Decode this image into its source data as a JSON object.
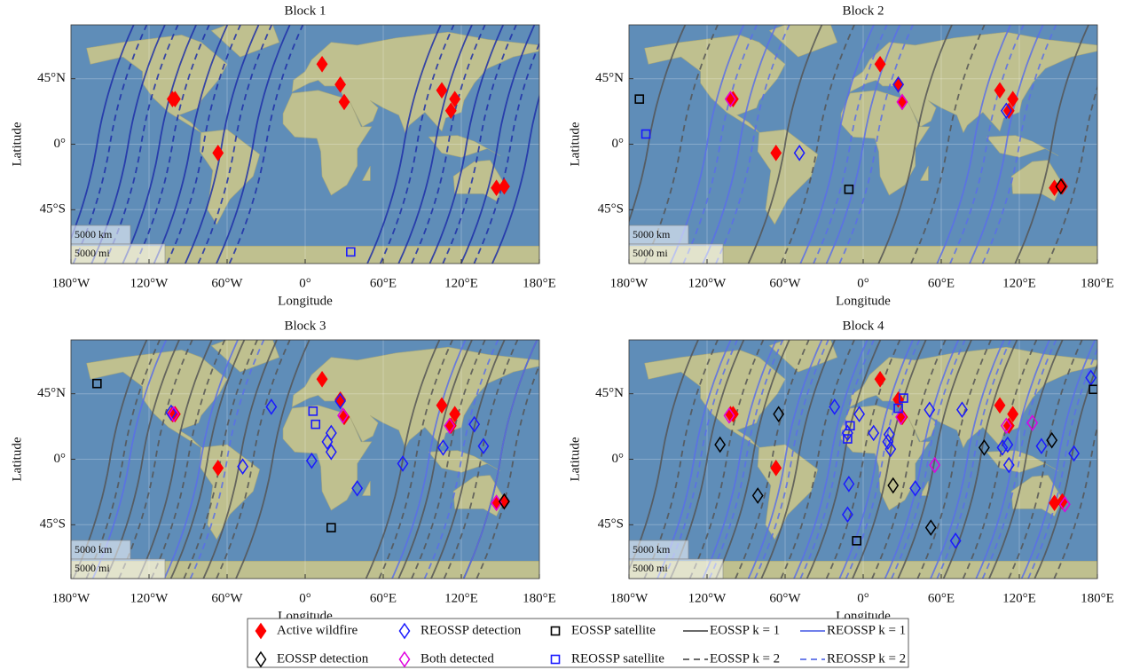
{
  "chart_data": [
    {
      "type": "map",
      "title": "Block 1",
      "x_label": "Longitude",
      "y_label": "Latitude",
      "xlim": [
        -180,
        180
      ],
      "ylim": [
        -82,
        82
      ],
      "xticks": [
        {
          "value": -180,
          "label": "180°W"
        },
        {
          "value": -120,
          "label": "120°W"
        },
        {
          "value": -60,
          "label": "60°W"
        },
        {
          "value": 0,
          "label": "0°"
        },
        {
          "value": 60,
          "label": "60°E"
        },
        {
          "value": 120,
          "label": "120°E"
        },
        {
          "value": 180,
          "label": "180°E"
        }
      ],
      "yticks": [
        {
          "value": 45,
          "label": "45°N"
        },
        {
          "value": 0,
          "label": "0°"
        },
        {
          "value": -45,
          "label": "45°S"
        }
      ],
      "scale_labels": [
        "5000 km",
        "5000 mi"
      ],
      "tracks": [
        {
          "color": "#1f2fa8",
          "dashed": false,
          "x": [
            -160,
            -136,
            -112,
            -88,
            -64,
            -40,
            76,
            100,
            124,
            148,
            172
          ]
        },
        {
          "color": "#1f2fa8",
          "dashed": true,
          "x": [
            -150,
            -126,
            -102,
            -78,
            -54,
            -30,
            86,
            110,
            134,
            158
          ]
        }
      ],
      "series": [
        {
          "marker": "diamond-filled",
          "color": "#ff0000",
          "x": [
            -102,
            -100,
            -67,
            13,
            27,
            30,
            105,
            112,
            115,
            147,
            153
          ],
          "y": [
            31,
            31,
            -6,
            55,
            41,
            29,
            37,
            23,
            31,
            -30,
            -29
          ]
        },
        {
          "marker": "square",
          "color": "#1a1aff",
          "x": [
            35
          ],
          "y": [
            -74
          ]
        }
      ]
    },
    {
      "type": "map",
      "title": "Block 2",
      "x_label": "Longitude",
      "y_label": "Latitude",
      "xlim": [
        -180,
        180
      ],
      "ylim": [
        -82,
        82
      ],
      "xticks": [
        {
          "value": -180,
          "label": "180°W"
        },
        {
          "value": -120,
          "label": "120°W"
        },
        {
          "value": -60,
          "label": "60°W"
        },
        {
          "value": 0,
          "label": "0°"
        },
        {
          "value": 60,
          "label": "60°E"
        },
        {
          "value": 120,
          "label": "120°E"
        },
        {
          "value": 180,
          "label": "180°E"
        }
      ],
      "yticks": [
        {
          "value": 45,
          "label": "45°N"
        },
        {
          "value": 0,
          "label": "0°"
        },
        {
          "value": -45,
          "label": "45°S"
        }
      ],
      "scale_labels": [
        "5000 km",
        "5000 mi"
      ],
      "tracks": [
        {
          "color": "#555555",
          "dashed": false,
          "x": [
            -165,
            -60,
            40,
            145
          ]
        },
        {
          "color": "#555555",
          "dashed": true,
          "x": [
            -140,
            -35,
            65,
            170
          ]
        },
        {
          "color": "#5b6ee8",
          "dashed": false,
          "x": [
            -120,
            -95,
            -20,
            0,
            85,
            110
          ]
        },
        {
          "color": "#5b6ee8",
          "dashed": true,
          "x": [
            -110,
            -85,
            -10,
            10,
            95,
            120
          ]
        }
      ],
      "series": [
        {
          "marker": "diamond-filled",
          "color": "#ff0000",
          "x": [
            -102,
            -100,
            -67,
            13,
            27,
            30,
            105,
            112,
            115,
            147,
            153
          ],
          "y": [
            31,
            31,
            -6,
            55,
            41,
            29,
            37,
            23,
            31,
            -30,
            -29
          ]
        },
        {
          "marker": "diamond",
          "color": "#1a1aff",
          "x": [
            27,
            -49,
            110
          ],
          "y": [
            41,
            -6,
            23
          ]
        },
        {
          "marker": "diamond",
          "color": "#e000e0",
          "x": [
            -102,
            30
          ],
          "y": [
            31,
            29
          ]
        },
        {
          "marker": "diamond",
          "color": "#000000",
          "x": [
            152
          ],
          "y": [
            -29
          ]
        },
        {
          "marker": "square",
          "color": "#000000",
          "x": [
            -172,
            -11
          ],
          "y": [
            31,
            -31
          ]
        },
        {
          "marker": "square",
          "color": "#1a1aff",
          "x": [
            -167
          ],
          "y": [
            7
          ]
        }
      ]
    },
    {
      "type": "map",
      "title": "Block 3",
      "x_label": "Longitude",
      "y_label": "Latitude",
      "xlim": [
        -180,
        180
      ],
      "ylim": [
        -82,
        82
      ],
      "xticks": [
        {
          "value": -180,
          "label": "180°W"
        },
        {
          "value": -120,
          "label": "120°W"
        },
        {
          "value": -60,
          "label": "60°W"
        },
        {
          "value": 0,
          "label": "0°"
        },
        {
          "value": 60,
          "label": "60°E"
        },
        {
          "value": 120,
          "label": "120°E"
        },
        {
          "value": 180,
          "label": "180°E"
        }
      ],
      "yticks": [
        {
          "value": 45,
          "label": "45°N"
        },
        {
          "value": 0,
          "label": "0°"
        },
        {
          "value": -45,
          "label": "45°S"
        }
      ],
      "scale_labels": [
        "5000 km",
        "5000 mi"
      ],
      "tracks": [
        {
          "color": "#555555",
          "dashed": false,
          "x": [
            -150,
            -125,
            -100,
            -75,
            -50,
            -25,
            75,
            100,
            125,
            150
          ]
        },
        {
          "color": "#555555",
          "dashed": true,
          "x": [
            -140,
            -115,
            -90,
            -65,
            -40,
            85,
            110,
            135,
            160
          ]
        },
        {
          "color": "#5b6ee8",
          "dashed": false,
          "x": [
            -135,
            -80,
            95,
            150
          ]
        },
        {
          "color": "#5b6ee8",
          "dashed": true,
          "x": [
            -60,
            120
          ]
        }
      ],
      "series": [
        {
          "marker": "diamond-filled",
          "color": "#ff0000",
          "x": [
            -102,
            -100,
            -67,
            13,
            27,
            30,
            105,
            112,
            115,
            147,
            153
          ],
          "y": [
            31,
            31,
            -6,
            55,
            41,
            29,
            37,
            23,
            31,
            -30,
            -29
          ]
        },
        {
          "marker": "diamond",
          "color": "#1a1aff",
          "x": [
            -26,
            27,
            20,
            17,
            20,
            5,
            40,
            75,
            130,
            137,
            106,
            -103,
            -48
          ],
          "y": [
            36,
            40,
            18,
            12,
            5,
            -1,
            -20,
            -3,
            24,
            9,
            8,
            32,
            -5
          ]
        },
        {
          "marker": "diamond",
          "color": "#e000e0",
          "x": [
            -101,
            29,
            111,
            147
          ],
          "y": [
            31,
            30,
            23,
            -30
          ]
        },
        {
          "marker": "diamond",
          "color": "#000000",
          "x": [
            153
          ],
          "y": [
            -29
          ]
        },
        {
          "marker": "square",
          "color": "#000000",
          "x": [
            -160,
            20
          ],
          "y": [
            52,
            -47
          ]
        },
        {
          "marker": "square",
          "color": "#1a1aff",
          "x": [
            6,
            8
          ],
          "y": [
            33,
            24
          ]
        }
      ]
    },
    {
      "type": "map",
      "title": "Block 4",
      "x_label": "Longitude",
      "y_label": "Latitude",
      "xlim": [
        -180,
        180
      ],
      "ylim": [
        -82,
        82
      ],
      "xticks": [
        {
          "value": -180,
          "label": "180°W"
        },
        {
          "value": -120,
          "label": "120°W"
        },
        {
          "value": -60,
          "label": "60°W"
        },
        {
          "value": 0,
          "label": "0°"
        },
        {
          "value": 60,
          "label": "60°E"
        },
        {
          "value": 120,
          "label": "120°E"
        },
        {
          "value": 180,
          "label": "180°E"
        }
      ],
      "yticks": [
        {
          "value": 45,
          "label": "45°N"
        },
        {
          "value": 0,
          "label": "0°"
        },
        {
          "value": -45,
          "label": "45°S"
        }
      ],
      "scale_labels": [
        "5000 km",
        "5000 mi"
      ],
      "tracks": [
        {
          "color": "#555555",
          "dashed": false,
          "x": [
            -155,
            -120,
            -85,
            -50,
            -15,
            20,
            55,
            90,
            125,
            160
          ]
        },
        {
          "color": "#555555",
          "dashed": true,
          "x": [
            -140,
            -105,
            -70,
            -35,
            0,
            35,
            70,
            105,
            140,
            175
          ]
        },
        {
          "color": "#5b6ee8",
          "dashed": false,
          "x": [
            -130,
            -95,
            -60,
            -25,
            10,
            45,
            80,
            115,
            150
          ]
        },
        {
          "color": "#5b6ee8",
          "dashed": true,
          "x": [
            -125,
            -90,
            -55,
            -20,
            15,
            50,
            85,
            120,
            155
          ]
        }
      ],
      "series": [
        {
          "marker": "diamond-filled",
          "color": "#ff0000",
          "x": [
            -102,
            -100,
            -67,
            13,
            27,
            30,
            105,
            112,
            115,
            147,
            153
          ],
          "y": [
            31,
            31,
            -6,
            55,
            41,
            29,
            37,
            23,
            31,
            -30,
            -29
          ]
        },
        {
          "marker": "diamond",
          "color": "#1a1aff",
          "x": [
            175,
            76,
            51,
            -22,
            -3,
            8,
            20,
            19,
            21,
            -12,
            -11,
            -12,
            40,
            71,
            112,
            107,
            137,
            162,
            111
          ],
          "y": [
            56,
            34,
            34,
            36,
            31,
            18,
            17,
            12,
            7,
            18,
            -17,
            -38,
            -20,
            -56,
            -4,
            8,
            9,
            4,
            10
          ]
        },
        {
          "marker": "diamond",
          "color": "#e000e0",
          "x": [
            130,
            55,
            -103,
            29,
            110,
            155
          ],
          "y": [
            25,
            -4,
            30,
            29,
            23,
            -31
          ]
        },
        {
          "marker": "diamond",
          "color": "#000000",
          "x": [
            -110,
            -65,
            -81,
            23,
            52,
            93,
            145
          ],
          "y": [
            10,
            31,
            -25,
            -18,
            -47,
            8,
            13
          ]
        },
        {
          "marker": "square",
          "color": "#000000",
          "x": [
            177,
            -5
          ],
          "y": [
            48,
            -56
          ]
        },
        {
          "marker": "square",
          "color": "#1a1aff",
          "x": [
            31,
            27,
            -12,
            -10
          ],
          "y": [
            42,
            35,
            14,
            23
          ]
        }
      ]
    }
  ],
  "legend": [
    {
      "label": "Active wildfire",
      "marker": "diamond-filled",
      "color": "#ff0000"
    },
    {
      "label": "EOSSP detection",
      "marker": "diamond",
      "color": "#000000"
    },
    {
      "label": "REOSSP detection",
      "marker": "diamond",
      "color": "#1a1aff"
    },
    {
      "label": "Both detected",
      "marker": "diamond",
      "color": "#e000e0"
    },
    {
      "label": "EOSSP satellite",
      "marker": "square",
      "color": "#000000"
    },
    {
      "label": "REOSSP satellite",
      "marker": "square",
      "color": "#1a1aff"
    },
    {
      "label": "EOSSP k = 1",
      "marker": "line",
      "color": "#555555",
      "dashed": false
    },
    {
      "label": "EOSSP k = 2",
      "marker": "line",
      "color": "#555555",
      "dashed": true
    },
    {
      "label": "REOSSP k = 1",
      "marker": "line",
      "color": "#5b6ee8",
      "dashed": false
    },
    {
      "label": "REOSSP k = 2",
      "marker": "line",
      "color": "#5b6ee8",
      "dashed": true
    }
  ]
}
